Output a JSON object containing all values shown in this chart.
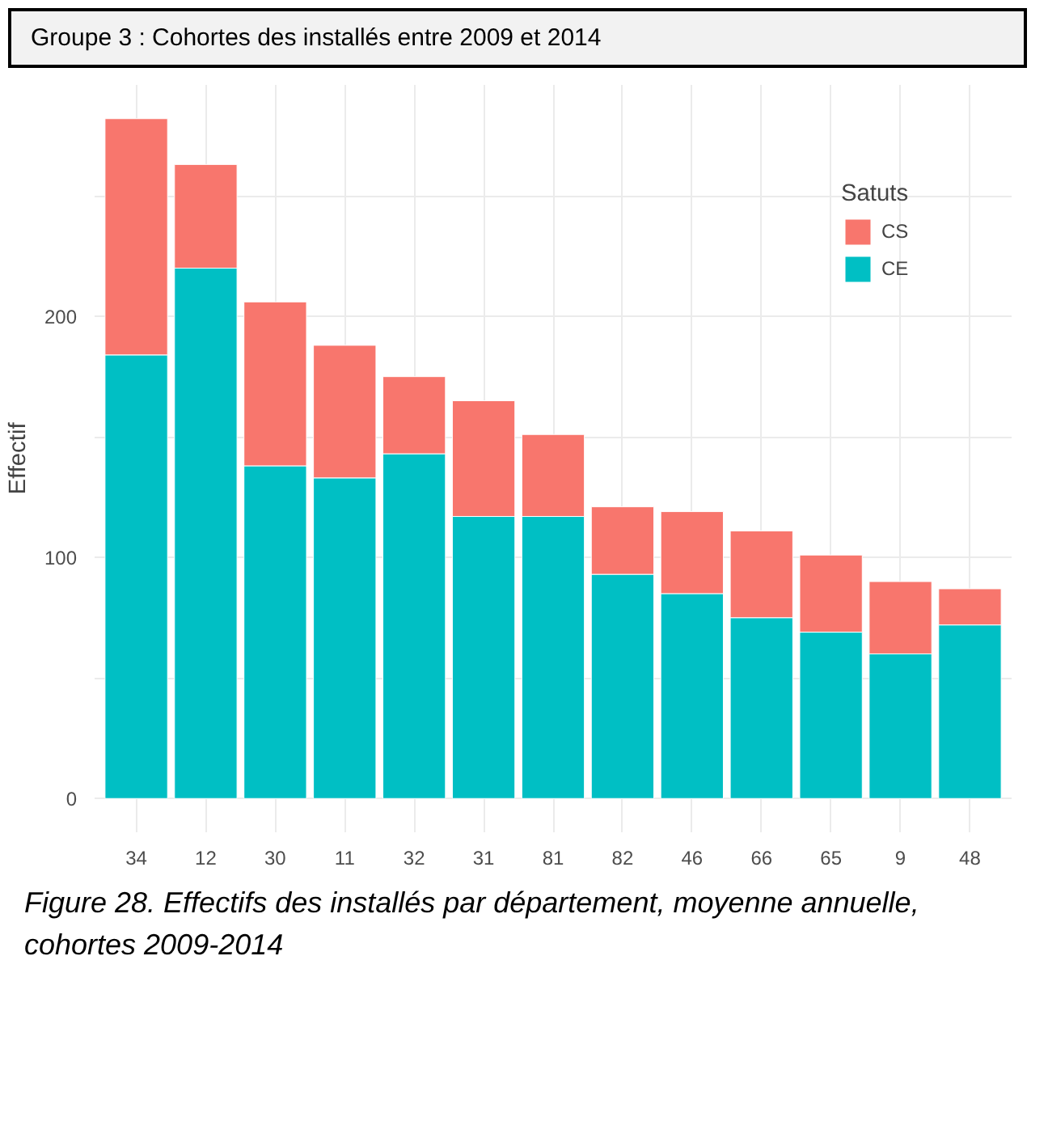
{
  "chart_data": {
    "type": "bar",
    "title": "Groupe 3 : Cohortes des installés entre 2009 et 2014",
    "ylabel": "Effectif",
    "legend_title": "Satuts",
    "categories": [
      "34",
      "12",
      "30",
      "11",
      "32",
      "31",
      "81",
      "82",
      "46",
      "66",
      "65",
      "9",
      "48"
    ],
    "stacked": true,
    "series": [
      {
        "name": "CE",
        "color": "#00bfc4",
        "values": [
          184,
          220,
          138,
          133,
          143,
          117,
          117,
          93,
          85,
          75,
          69,
          60,
          72
        ]
      },
      {
        "name": "CS",
        "color": "#f8766d",
        "values": [
          98,
          43,
          68,
          55,
          32,
          48,
          34,
          28,
          34,
          36,
          32,
          30,
          15
        ]
      }
    ],
    "ylim": [
      -14,
      296
    ],
    "yticks": [
      0,
      {
        "value": 50,
        "label": null
      },
      100,
      {
        "value": 150,
        "label": null
      },
      200,
      {
        "value": 250,
        "label": null
      }
    ],
    "grid": true,
    "legend": "top right",
    "annotations": [
      "Figure 28. Effectifs des installés par département, moyenne annuelle, cohortes 2009-2014"
    ]
  }
}
